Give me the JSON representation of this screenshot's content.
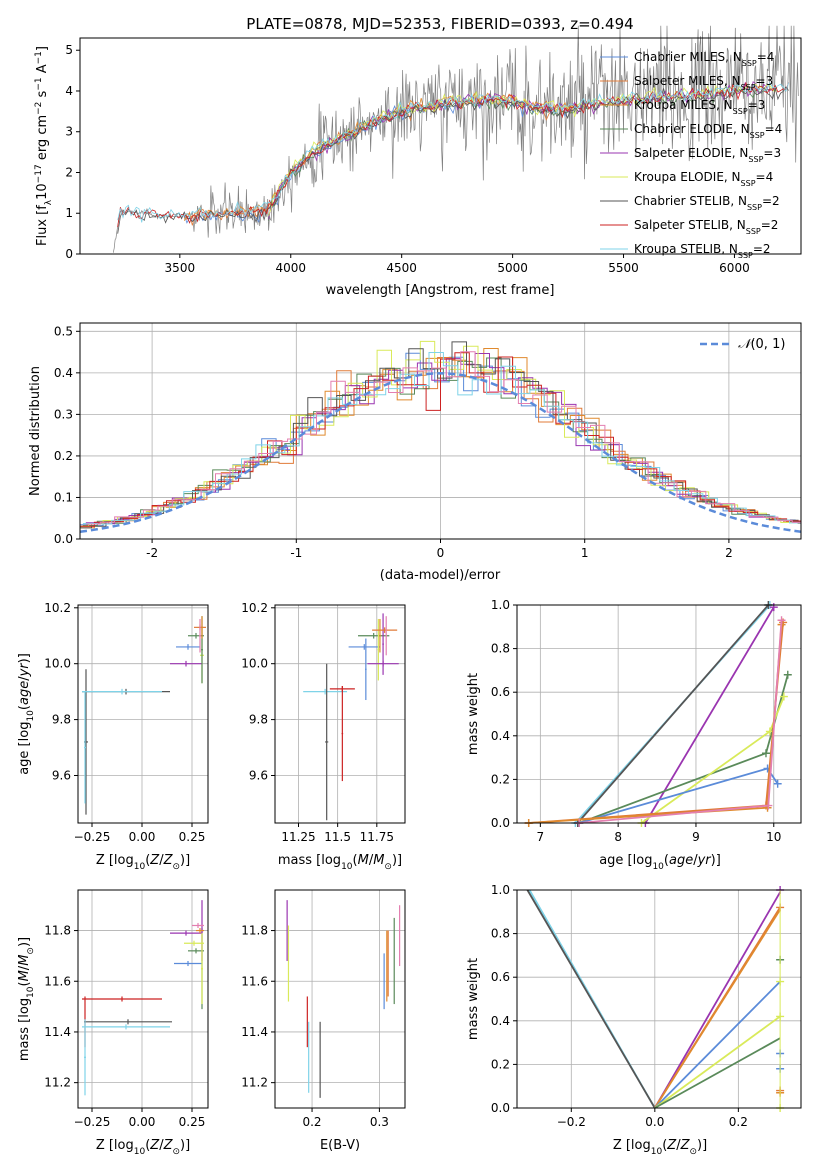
{
  "figure": {
    "title": "PLATE=0878, MJD=52353, FIBERID=0393, z=0.494"
  },
  "colors": {
    "chabrier_miles": "#5b8bd9",
    "salpeter_miles": "#e07b39",
    "kroupa_miles": "#e08a2e",
    "chabrier_elodie": "#5a8a5a",
    "salpeter_elodie": "#9a35b0",
    "kroupa_elodie": "#d9ea5a",
    "chabrier_stelib": "#555555",
    "salpeter_stelib": "#cc2222",
    "kroupa_stelib": "#7fd3e8",
    "extra_pink": "#e37fb0",
    "observed": "#808080",
    "normal": "#5b8bd9"
  },
  "chart_data": [
    {
      "id": "spectrum",
      "type": "line",
      "title": "PLATE=0878, MJD=52353, FIBERID=0393, z=0.494",
      "xlabel": "wavelength [Angstrom, rest frame]",
      "ylabel": "Flux [f_λ10^-17 erg cm^-2 s^-1 A^-1]",
      "xlim": [
        3050,
        6300
      ],
      "ylim": [
        0,
        5.3
      ],
      "xticks": [
        3500,
        4000,
        4500,
        5000,
        5500,
        6000
      ],
      "yticks": [
        0,
        1,
        2,
        3,
        4,
        5
      ],
      "legend": [
        "Chabrier MILES, N_SSP=4",
        "Salpeter MILES, N_SSP=3",
        "Kroupa MILES, N_SSP=3",
        "Chabrier ELODIE, N_SSP=4",
        "Salpeter ELODIE, N_SSP=3",
        "Kroupa ELODIE, N_SSP=4",
        "Chabrier STELIB, N_SSP=2",
        "Salpeter STELIB, N_SSP=2",
        "Kroupa STELIB, N_SSP=2"
      ],
      "legend_location": "top-right",
      "continuum": {
        "x": [
          3200,
          3230,
          3300,
          3400,
          3500,
          3600,
          3700,
          3800,
          3900,
          4000,
          4100,
          4200,
          4300,
          4400,
          4500,
          4600,
          4700,
          4800,
          4900,
          5000,
          5100,
          5200,
          5300,
          5400,
          5500,
          5600,
          5700,
          5800,
          5900,
          6000,
          6100
        ],
        "y": [
          0.0,
          1.0,
          1.05,
          0.95,
          0.92,
          0.95,
          1.0,
          1.0,
          1.1,
          2.0,
          2.5,
          2.8,
          3.05,
          3.3,
          3.5,
          3.6,
          3.7,
          3.75,
          3.8,
          3.75,
          3.6,
          3.55,
          3.6,
          3.7,
          3.75,
          3.8,
          3.85,
          3.9,
          3.95,
          4.0,
          4.05
        ]
      }
    },
    {
      "id": "residuals",
      "type": "bar",
      "xlabel": "(data-model)/error",
      "ylabel": "Normed distribution",
      "xlim": [
        -2.5,
        2.5
      ],
      "ylim": [
        0,
        0.52
      ],
      "xticks": [
        -2,
        -1,
        0,
        1,
        2
      ],
      "yticks": [
        0.0,
        0.1,
        0.2,
        0.3,
        0.4,
        0.5
      ],
      "legend": [
        "N(0, 1)"
      ],
      "legend_location": "top-right"
    },
    {
      "id": "z-age",
      "type": "scatter",
      "xlabel": "Z [log10(Z/Z⊙)]",
      "ylabel": "age [log10(age/yr)]",
      "xlim": [
        -0.32,
        0.33
      ],
      "ylim": [
        9.43,
        10.21
      ],
      "xticks": [
        -0.25,
        0.0,
        0.25
      ],
      "xtick_labels": [
        "−0.25",
        "0.00",
        "0.25"
      ],
      "yticks": [
        9.6,
        9.8,
        10.0,
        10.2
      ]
    },
    {
      "id": "mass-age",
      "type": "scatter",
      "xlabel": "mass [log10(M/M⊙)]",
      "xlim": [
        11.1,
        11.93
      ],
      "ylim": [
        9.43,
        10.21
      ],
      "xticks": [
        11.25,
        11.5,
        11.75
      ],
      "yticks": [
        9.6,
        9.8,
        10.0,
        10.2
      ]
    },
    {
      "id": "age-weight",
      "type": "line",
      "xlabel": "age [log10(age/yr)]",
      "ylabel": "mass weight",
      "xlim": [
        6.7,
        10.35
      ],
      "ylim": [
        0,
        1
      ],
      "xticks": [
        7,
        8,
        9,
        10
      ],
      "yticks": [
        0.0,
        0.2,
        0.4,
        0.6,
        0.8,
        1.0
      ]
    },
    {
      "id": "z-mass",
      "type": "scatter",
      "xlabel": "Z [log10(Z/Z⊙)]",
      "ylabel": "mass [log10(M/M⊙)]",
      "xlim": [
        -0.32,
        0.33
      ],
      "ylim": [
        11.1,
        11.96
      ],
      "xticks": [
        -0.25,
        0.0,
        0.25
      ],
      "xtick_labels": [
        "−0.25",
        "0.00",
        "0.25"
      ],
      "yticks": [
        11.2,
        11.4,
        11.6,
        11.8
      ]
    },
    {
      "id": "ebv-mass",
      "type": "scatter",
      "xlabel": "E(B-V)",
      "xlim": [
        0.145,
        0.338
      ],
      "ylim": [
        11.1,
        11.96
      ],
      "xticks": [
        0.2,
        0.3
      ],
      "yticks": [
        11.2,
        11.4,
        11.6,
        11.8
      ]
    },
    {
      "id": "z-weight",
      "type": "line",
      "xlabel": "Z [log10(Z/Z⊙)]",
      "ylabel": "mass weight",
      "xlim": [
        -0.33,
        0.35
      ],
      "ylim": [
        0,
        1
      ],
      "xticks": [
        -0.2,
        0.0,
        0.2
      ],
      "xtick_labels": [
        "−0.2",
        "0.0",
        "0.2"
      ],
      "yticks": [
        0.0,
        0.2,
        0.4,
        0.6,
        0.8,
        1.0
      ]
    }
  ]
}
